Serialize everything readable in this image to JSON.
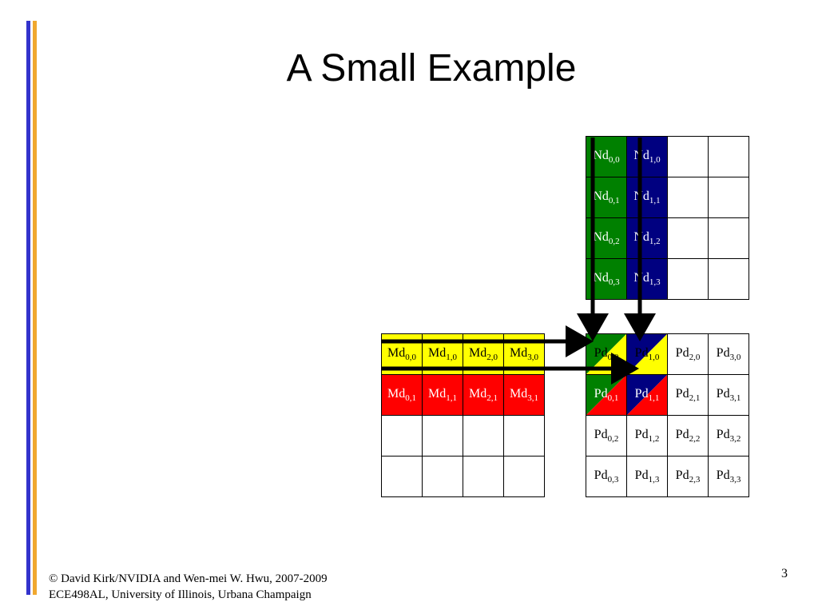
{
  "slide": {
    "title": "A Small Example",
    "page_number": "3",
    "footer_line1": "© David Kirk/NVIDIA and Wen-mei W. Hwu, 2007-2009",
    "footer_line2": "ECE498AL, University of Illinois, Urbana Champaign"
  },
  "colors": {
    "bar_blue": "#3333cc",
    "bar_orange": "#f0a830",
    "green": "#008000",
    "navy": "#000080",
    "yellow": "#ffff00",
    "red": "#ff0000"
  },
  "matrices": {
    "N": {
      "rows": [
        [
          {
            "base": "Nd",
            "sub": "0,0",
            "fill": "green"
          },
          {
            "base": "Nd",
            "sub": "1,0",
            "fill": "navy"
          },
          {
            "base": "",
            "sub": ""
          },
          {
            "base": "",
            "sub": ""
          }
        ],
        [
          {
            "base": "Nd",
            "sub": "0,1",
            "fill": "green"
          },
          {
            "base": "Nd",
            "sub": "1,1",
            "fill": "navy"
          },
          {
            "base": "",
            "sub": ""
          },
          {
            "base": "",
            "sub": ""
          }
        ],
        [
          {
            "base": "Nd",
            "sub": "0,2",
            "fill": "green"
          },
          {
            "base": "Nd",
            "sub": "1,2",
            "fill": "navy"
          },
          {
            "base": "",
            "sub": ""
          },
          {
            "base": "",
            "sub": ""
          }
        ],
        [
          {
            "base": "Nd",
            "sub": "0,3",
            "fill": "green"
          },
          {
            "base": "Nd",
            "sub": "1,3",
            "fill": "navy"
          },
          {
            "base": "",
            "sub": ""
          },
          {
            "base": "",
            "sub": ""
          }
        ]
      ]
    },
    "M": {
      "rows": [
        [
          {
            "base": "Md",
            "sub": "0,0",
            "fill": "yellow"
          },
          {
            "base": "Md",
            "sub": "1,0",
            "fill": "yellow"
          },
          {
            "base": "Md",
            "sub": "2,0",
            "fill": "yellow"
          },
          {
            "base": "Md",
            "sub": "3,0",
            "fill": "yellow"
          }
        ],
        [
          {
            "base": "Md",
            "sub": "0,1",
            "fill": "red"
          },
          {
            "base": "Md",
            "sub": "1,1",
            "fill": "red"
          },
          {
            "base": "Md",
            "sub": "2,1",
            "fill": "red"
          },
          {
            "base": "Md",
            "sub": "3,1",
            "fill": "red"
          }
        ],
        [
          {
            "base": "",
            "sub": ""
          },
          {
            "base": "",
            "sub": ""
          },
          {
            "base": "",
            "sub": ""
          },
          {
            "base": "",
            "sub": ""
          }
        ],
        [
          {
            "base": "",
            "sub": ""
          },
          {
            "base": "",
            "sub": ""
          },
          {
            "base": "",
            "sub": ""
          },
          {
            "base": "",
            "sub": ""
          }
        ]
      ]
    },
    "P": {
      "rows": [
        [
          {
            "base": "Pd",
            "sub": "0,0",
            "split": [
              "green",
              "yellow"
            ]
          },
          {
            "base": "Pd",
            "sub": "1,0",
            "split": [
              "navy",
              "yellow"
            ]
          },
          {
            "base": "Pd",
            "sub": "2,0"
          },
          {
            "base": "Pd",
            "sub": "3,0"
          }
        ],
        [
          {
            "base": "Pd",
            "sub": "0,1",
            "split": [
              "green",
              "red"
            ]
          },
          {
            "base": "Pd",
            "sub": "1,1",
            "split": [
              "navy",
              "red"
            ]
          },
          {
            "base": "Pd",
            "sub": "2,1"
          },
          {
            "base": "Pd",
            "sub": "3,1"
          }
        ],
        [
          {
            "base": "Pd",
            "sub": "0,2"
          },
          {
            "base": "Pd",
            "sub": "1,2"
          },
          {
            "base": "Pd",
            "sub": "2,2"
          },
          {
            "base": "Pd",
            "sub": "3,2"
          }
        ],
        [
          {
            "base": "Pd",
            "sub": "0,3"
          },
          {
            "base": "Pd",
            "sub": "1,3"
          },
          {
            "base": "Pd",
            "sub": "2,3"
          },
          {
            "base": "Pd",
            "sub": "3,3"
          }
        ]
      ]
    }
  }
}
